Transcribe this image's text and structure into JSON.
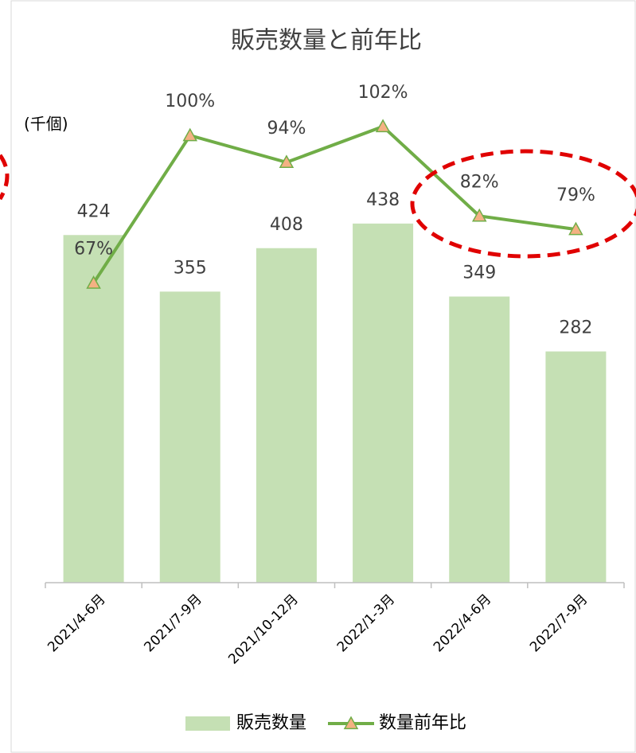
{
  "chart_data": {
    "type": "bar_line",
    "title": "販売数量と前年比",
    "y_label": "(千個)",
    "categories": [
      "2021/4-6月",
      "2021/7-9月",
      "2021/10-12月",
      "2022/1-3月",
      "2022/4-6月",
      "2022/7-9月"
    ],
    "series": [
      {
        "name": "販売数量",
        "type": "bar",
        "color": "#c5e0b4",
        "values": [
          424,
          355,
          408,
          438,
          349,
          282
        ]
      },
      {
        "name": "数量前年比",
        "type": "line",
        "axis": "y2",
        "color": "#70ad47",
        "marker_color": "#f4b183",
        "values": [
          67,
          100,
          94,
          102,
          82,
          79
        ],
        "value_labels": [
          "67%",
          "100%",
          "94%",
          "102%",
          "82%",
          "79%"
        ]
      }
    ],
    "ylim": [
      0,
      600
    ],
    "y2lim": [
      0,
      110
    ]
  }
}
